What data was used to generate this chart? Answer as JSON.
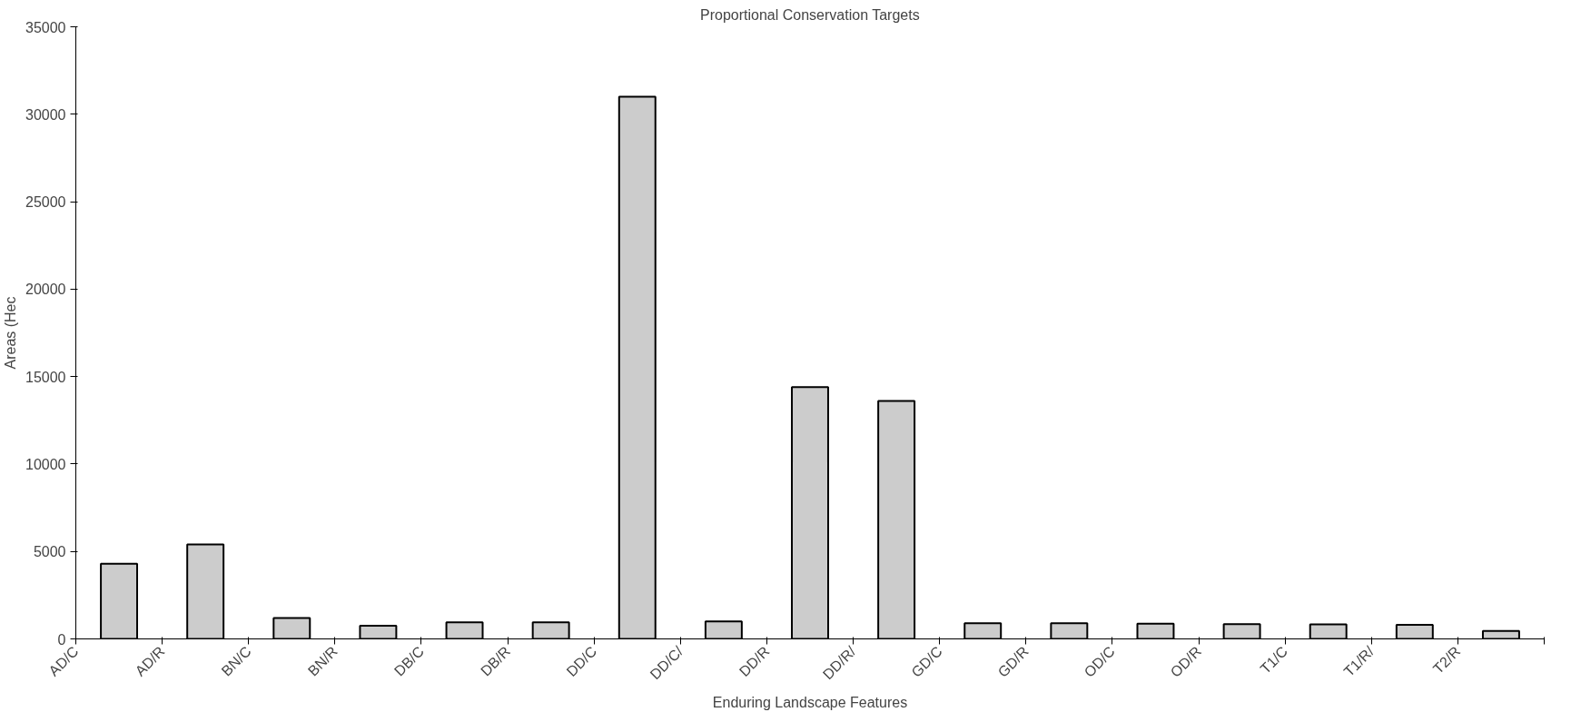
{
  "chart_data": {
    "type": "bar",
    "title": "Proportional Conservation Targets",
    "xlabel": "Enduring Landscape Features",
    "ylabel": "Areas (Hec",
    "categories": [
      "AD/C",
      "AD/R",
      "BN/C",
      "BN/R",
      "DB/C",
      "DB/R",
      "DD/C",
      "DD/C/",
      "DD/R",
      "DD/R/",
      "GD/C",
      "GD/R",
      "OD/C",
      "OD/R",
      "T1/C",
      "T1/R/",
      "T2/R"
    ],
    "values": [
      4300,
      5400,
      1200,
      750,
      950,
      950,
      31000,
      1000,
      14400,
      13600,
      900,
      900,
      870,
      850,
      830,
      800,
      450
    ],
    "color": "#cccccc",
    "ylim": [
      0,
      35000
    ],
    "yticks": [
      0,
      5000,
      10000,
      15000,
      20000,
      25000,
      30000,
      35000
    ],
    "grid": false
  }
}
